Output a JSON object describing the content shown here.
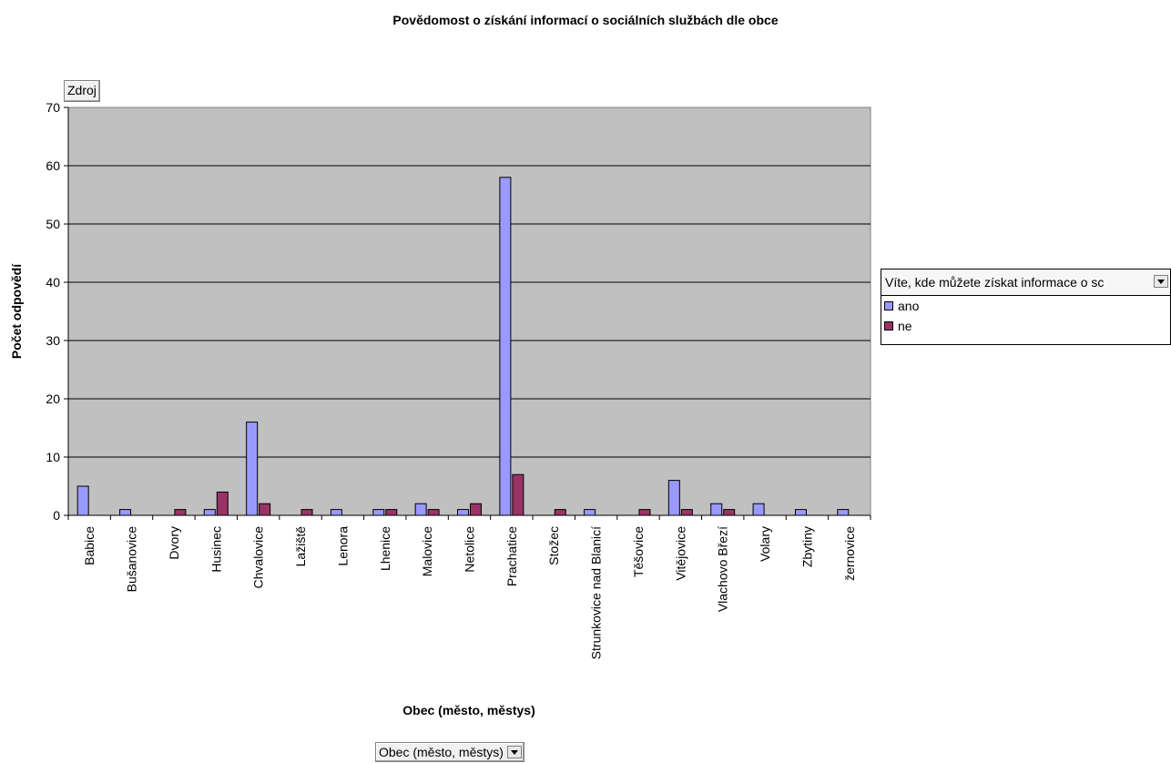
{
  "colors": {
    "ano": "#9999ff",
    "ne": "#993366",
    "plot_bg": "#c0c0c0"
  },
  "source_button": {
    "label": "Zdroj"
  },
  "field_button": {
    "label": "Obec (město, městys)",
    "icon": "chevron-down-icon"
  },
  "legend": {
    "title": "Víte, kde můžete získat informace o sc",
    "icon": "chevron-down-icon",
    "items": [
      {
        "label": "ano"
      },
      {
        "label": "ne"
      }
    ]
  },
  "chart_data": {
    "type": "bar",
    "title": "Povědomost o získání informací o sociálních službách dle obce",
    "xlabel": "Obec (město, městys)",
    "ylabel": "Počet odpovědí",
    "ylim": [
      0,
      70
    ],
    "yticks": [
      0,
      10,
      20,
      30,
      40,
      50,
      60,
      70
    ],
    "grid": true,
    "legend_position": "right",
    "categories": [
      "Babice",
      "Bušanovice",
      "Dvory",
      "Husinec",
      "Chvalovice",
      "Lažiště",
      "Lenora",
      "Lhenice",
      "Malovice",
      "Netolice",
      "Prachatice",
      "Stožec",
      "Strunkovice nad Blanicí",
      "Těšovice",
      "Vitějovice",
      "Vlachovo Březí",
      "Volary",
      "Zbytiny",
      "žernovice"
    ],
    "series": [
      {
        "name": "ano",
        "values": [
          5,
          1,
          0,
          1,
          16,
          0,
          1,
          1,
          2,
          1,
          58,
          0,
          1,
          0,
          6,
          2,
          2,
          1,
          1
        ]
      },
      {
        "name": "ne",
        "values": [
          0,
          0,
          1,
          4,
          2,
          1,
          0,
          1,
          1,
          2,
          7,
          1,
          0,
          1,
          1,
          1,
          0,
          0,
          0
        ]
      }
    ]
  }
}
